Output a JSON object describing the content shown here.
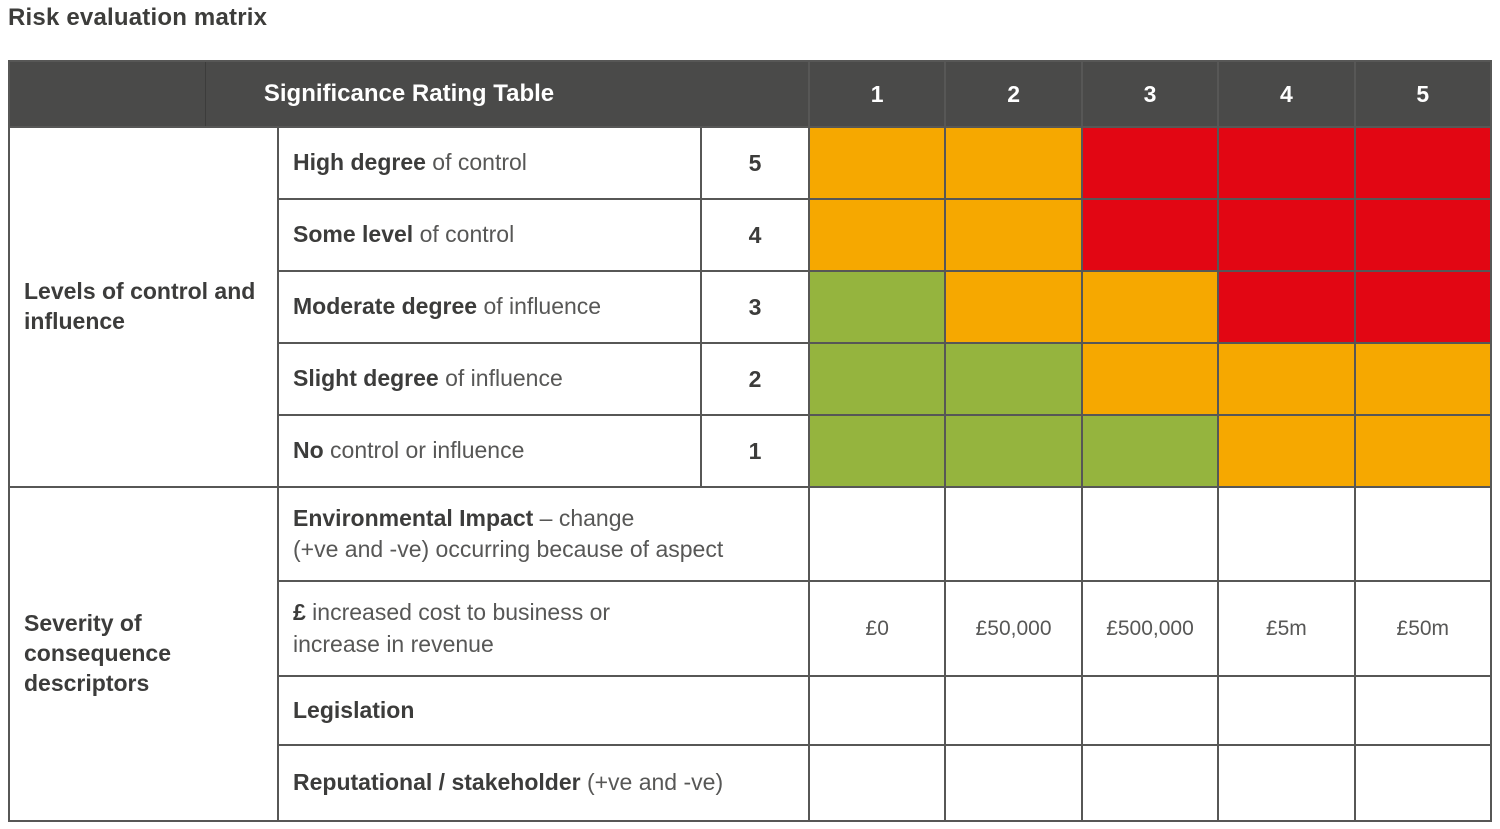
{
  "page_title": "Risk evaluation matrix",
  "colors": {
    "header_bg": "#4a4a49",
    "grid": "#575756",
    "green": "#95b43e",
    "orange": "#f6a800",
    "red": "#e20613",
    "text_dark": "#3c3c3b",
    "text_body": "#575756"
  },
  "header": {
    "title": "Significance Rating Table",
    "columns": [
      "1",
      "2",
      "3",
      "4",
      "5"
    ]
  },
  "control_section": {
    "group_label": "Levels of control and influence",
    "rows": [
      {
        "bold": "High degree",
        "rest": " of control",
        "rating": "5",
        "cells": [
          "orange",
          "orange",
          "red",
          "red",
          "red"
        ]
      },
      {
        "bold": "Some level",
        "rest": " of control",
        "rating": "4",
        "cells": [
          "orange",
          "orange",
          "red",
          "red",
          "red"
        ]
      },
      {
        "bold": "Moderate degree",
        "rest": " of influence",
        "rating": "3",
        "cells": [
          "green",
          "orange",
          "orange",
          "red",
          "red"
        ]
      },
      {
        "bold": "Slight degree",
        "rest": " of influence",
        "rating": "2",
        "cells": [
          "green",
          "green",
          "orange",
          "orange",
          "orange"
        ]
      },
      {
        "bold": "No",
        "rest": " control or influence",
        "rating": "1",
        "cells": [
          "green",
          "green",
          "green",
          "orange",
          "orange"
        ]
      }
    ]
  },
  "severity_section": {
    "group_label": "Severity of consequence descriptors",
    "rows": [
      {
        "bold": "Environmental Impact",
        "rest": " – change",
        "line2": "(+ve and -ve) occurring because of aspect",
        "values": [
          "",
          "",
          "",
          "",
          ""
        ]
      },
      {
        "bold": "£",
        "rest": " increased cost to business or",
        "line2": "increase in revenue",
        "values": [
          "£0",
          "£50,000",
          "£500,000",
          "£5m",
          "£50m"
        ]
      },
      {
        "bold": "Legislation",
        "rest": "",
        "line2": "",
        "values": [
          "",
          "",
          "",
          "",
          ""
        ]
      },
      {
        "bold": "Reputational / stakeholder",
        "rest": " (+ve and -ve)",
        "line2": "",
        "values": [
          "",
          "",
          "",
          "",
          ""
        ]
      }
    ]
  }
}
